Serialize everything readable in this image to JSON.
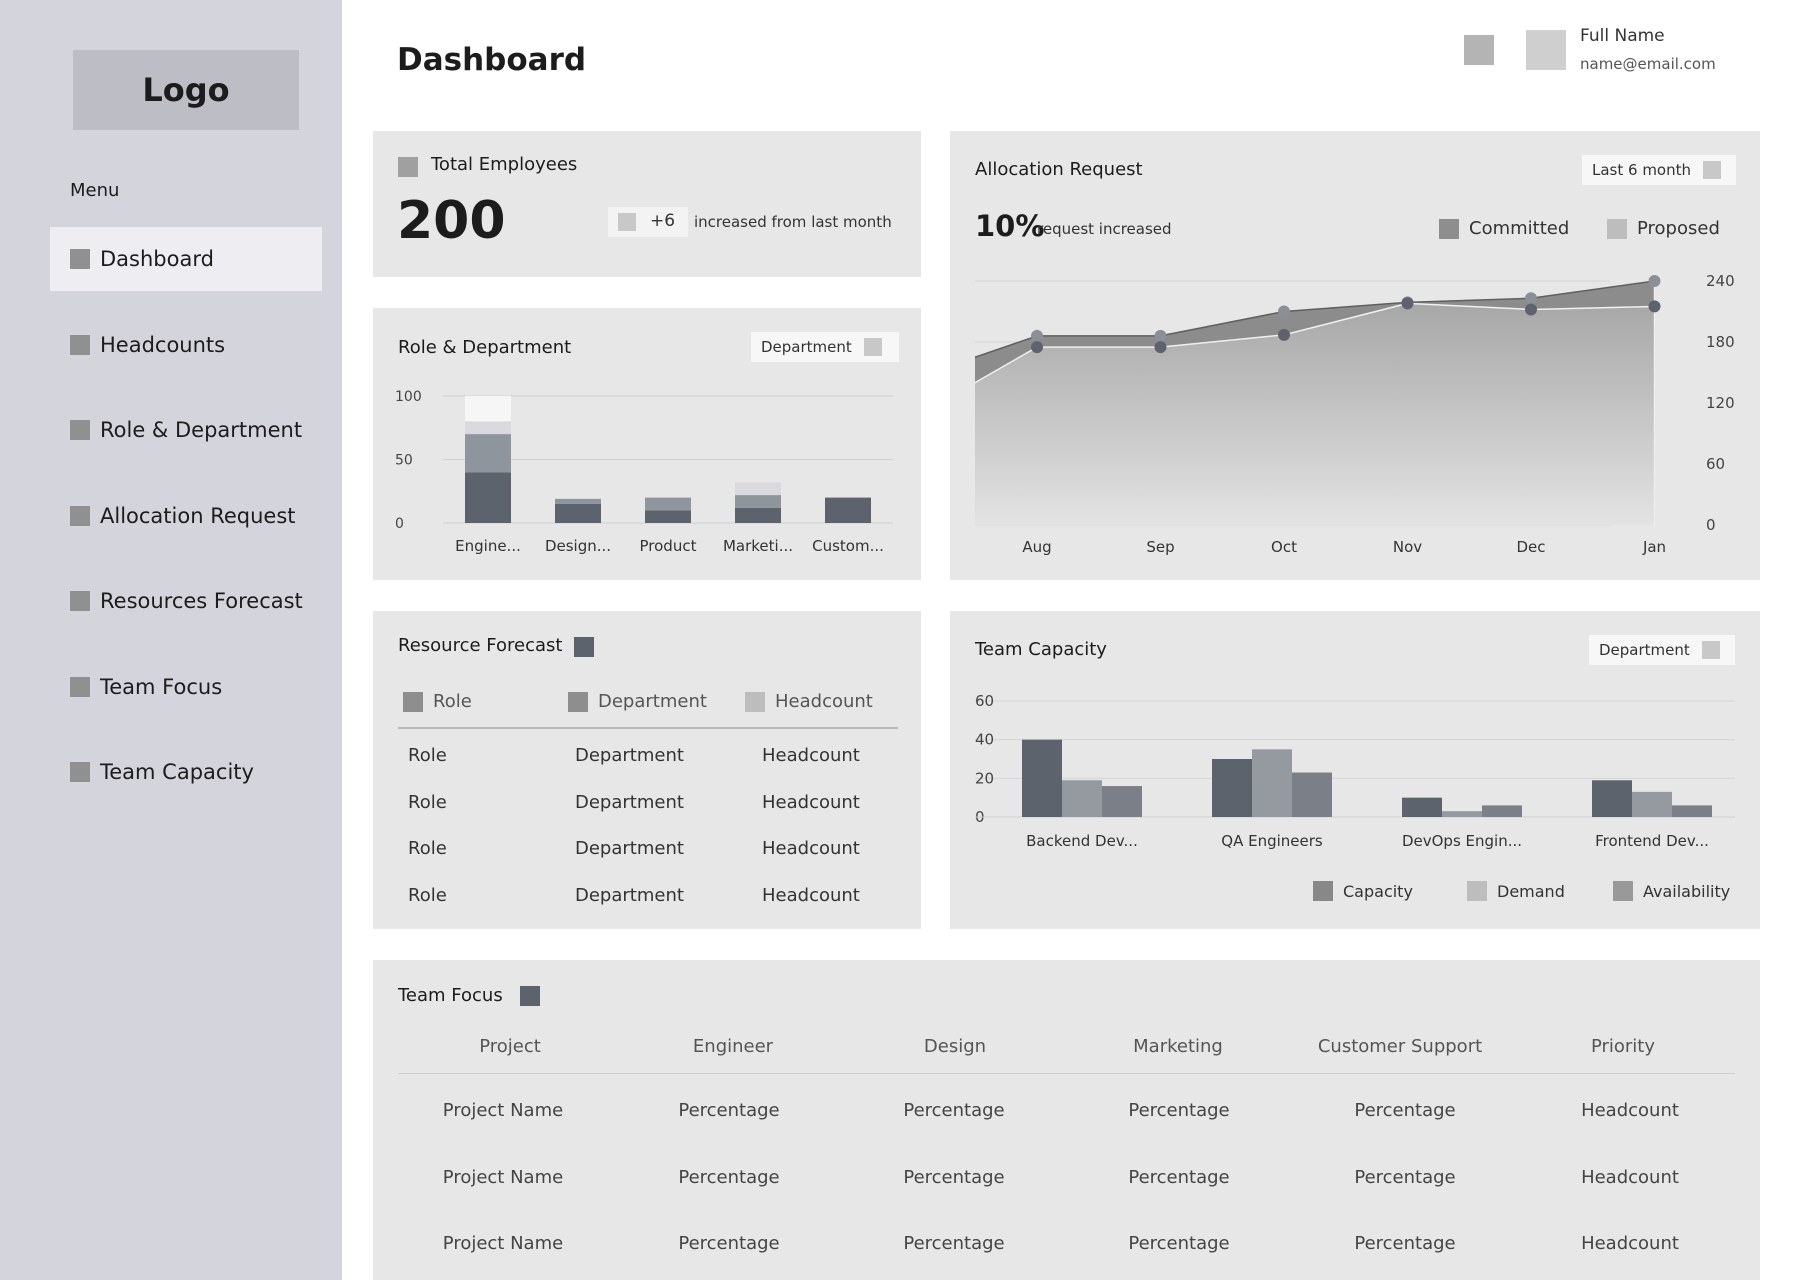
{
  "sidebar": {
    "logo": "Logo",
    "menu_title": "Menu",
    "items": [
      {
        "label": "Dashboard",
        "active": true
      },
      {
        "label": "Headcounts"
      },
      {
        "label": "Role & Department"
      },
      {
        "label": "Allocation Request"
      },
      {
        "label": "Resources Forecast"
      },
      {
        "label": "Team Focus"
      },
      {
        "label": "Team Capacity"
      }
    ]
  },
  "header": {
    "title": "Dashboard",
    "user_name": "Full Name",
    "user_email": "name@email.com"
  },
  "total_employees": {
    "title": "Total Employees",
    "value": "200",
    "delta": "+6",
    "delta_text": "increased from last month"
  },
  "role_department": {
    "title": "Role & Department",
    "filter": "Department",
    "chart_data": {
      "type": "bar",
      "stacked": true,
      "categories": [
        "Engine...",
        "Design...",
        "Product",
        "Marketi...",
        "Custom..."
      ],
      "ylim": [
        0,
        100
      ],
      "yticks": [
        "100",
        "50",
        "0"
      ],
      "series": [
        {
          "values": [
            40,
            15,
            10,
            12,
            20
          ],
          "color": "#5d636c"
        },
        {
          "values": [
            30,
            4,
            10,
            10,
            0
          ],
          "color": "#8f959c"
        },
        {
          "values": [
            10,
            0,
            0,
            10,
            0
          ],
          "color": "#d9d9de"
        },
        {
          "values": [
            20,
            0,
            0,
            0,
            0
          ],
          "color": "#f6f6f6"
        }
      ]
    }
  },
  "allocation": {
    "title": "Allocation Request",
    "filter": "Last 6 month",
    "percent": "10%",
    "percent_text": "request increased",
    "legend": [
      {
        "label": "Committed",
        "color": "#8e8e8e"
      },
      {
        "label": "Proposed",
        "color": "#bdbdbd"
      }
    ],
    "chart_data": {
      "type": "area",
      "x": [
        "Aug",
        "Sep",
        "Oct",
        "Nov",
        "Dec",
        "Jan"
      ],
      "ylim": [
        0,
        240
      ],
      "yticks": [
        "240",
        "180",
        "120",
        "60",
        "0"
      ],
      "series": [
        {
          "name": "Committed",
          "values": [
            186,
            186,
            210,
            219,
            223,
            240
          ]
        },
        {
          "name": "Proposed",
          "values": [
            175,
            175,
            187,
            218,
            212,
            215
          ]
        }
      ]
    }
  },
  "resource_forecast": {
    "title": "Resource Forecast",
    "headers": [
      "Role",
      "Department",
      "Headcount"
    ],
    "rows": [
      [
        "Role",
        "Department",
        "Headcount"
      ],
      [
        "Role",
        "Department",
        "Headcount"
      ],
      [
        "Role",
        "Department",
        "Headcount"
      ],
      [
        "Role",
        "Department",
        "Headcount"
      ]
    ]
  },
  "team_capacity": {
    "title": "Team Capacity",
    "filter": "Department",
    "legend": [
      {
        "label": "Capacity",
        "color": "#888888"
      },
      {
        "label": "Demand",
        "color": "#bdbdbd"
      },
      {
        "label": "Availability",
        "color": "#999999"
      }
    ],
    "chart_data": {
      "type": "bar",
      "categories": [
        "Backend Dev...",
        "QA Engineers",
        "DevOps Engin...",
        "Frontend Dev..."
      ],
      "ylim": [
        0,
        60
      ],
      "yticks": [
        "60",
        "40",
        "20",
        "0"
      ],
      "series": [
        {
          "name": "Capacity",
          "values": [
            40,
            30,
            10,
            19
          ],
          "color": "#5d636c"
        },
        {
          "name": "Demand",
          "values": [
            19,
            35,
            3,
            13
          ],
          "color": "#959aa0"
        },
        {
          "name": "Availability",
          "values": [
            16,
            23,
            6,
            6
          ],
          "color": "#7b8088"
        }
      ]
    }
  },
  "team_focus": {
    "title": "Team Focus",
    "headers": [
      "Project",
      "Engineer",
      "Design",
      "Marketing",
      "Customer Support",
      "Priority"
    ],
    "rows": [
      [
        "Project Name",
        "Percentage",
        "Percentage",
        "Percentage",
        "Percentage",
        "Headcount"
      ],
      [
        "Project Name",
        "Percentage",
        "Percentage",
        "Percentage",
        "Percentage",
        "Headcount"
      ],
      [
        "Project Name",
        "Percentage",
        "Percentage",
        "Percentage",
        "Percentage",
        "Headcount"
      ]
    ]
  }
}
